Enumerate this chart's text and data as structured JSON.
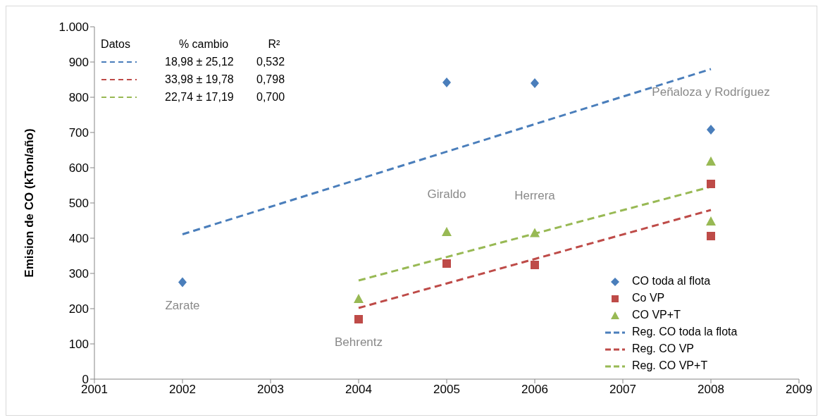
{
  "chart_data": {
    "type": "scatter",
    "ylabel": "Emision de CO (kTon/año)",
    "xlim": [
      2001,
      2009
    ],
    "xticks": [
      2001,
      2002,
      2003,
      2004,
      2005,
      2006,
      2007,
      2008,
      2009
    ],
    "ylim": [
      0,
      1000
    ],
    "yticks": [
      0,
      100,
      200,
      300,
      400,
      500,
      600,
      700,
      800,
      900,
      {
        "value": 1000,
        "label": "1.000"
      }
    ],
    "grid": false,
    "legend": "bottom right",
    "series": [
      {
        "name": "CO toda al flota",
        "marker": "diamond",
        "color": "#4a7ebb",
        "x": [
          2002,
          2005,
          2006,
          2008
        ],
        "values": [
          275,
          842,
          840,
          708
        ]
      },
      {
        "name": "Co VP",
        "marker": "square",
        "color": "#be4b48",
        "x": [
          2004,
          2005,
          2006,
          2008,
          2008
        ],
        "values": [
          170,
          328,
          324,
          554,
          406
        ]
      },
      {
        "name": "CO VP+T",
        "marker": "triangle",
        "color": "#98b954",
        "x": [
          2004,
          2005,
          2006,
          2008,
          2008
        ],
        "values": [
          228,
          418,
          415,
          618,
          448
        ]
      },
      {
        "name": "Reg. CO toda la flota",
        "type": "line",
        "line_style": "dashed",
        "marker": "none",
        "color": "#4a7ebb",
        "x": [
          2002,
          2008
        ],
        "values": [
          411,
          880
        ]
      },
      {
        "name": "Reg. CO VP",
        "type": "line",
        "line_style": "dashed",
        "marker": "none",
        "color": "#be4b48",
        "x": [
          2004,
          2008
        ],
        "values": [
          202,
          480
        ]
      },
      {
        "name": "Reg. CO VP+T",
        "type": "line",
        "line_style": "dashed",
        "marker": "none",
        "color": "#98b954",
        "x": [
          2004,
          2008
        ],
        "values": [
          280,
          546
        ]
      }
    ],
    "annotations": [
      {
        "text": "Zarate",
        "x": 2002,
        "y": 275
      },
      {
        "text": "Behrentz",
        "x": 2004,
        "y": 170
      },
      {
        "text": "Giraldo",
        "x": 2005,
        "y": 418
      },
      {
        "text": "Herrera",
        "x": 2006,
        "y": 415
      },
      {
        "text": "Peñaloza y Rodríguez",
        "x": 2008,
        "y": 708
      },
      "Datos",
      "% cambio",
      "R²",
      "18,98 ± 25,12",
      "0,532",
      "33,98 ± 19,78",
      "0,798",
      "22,74 ± 17,19",
      "0,700"
    ]
  }
}
